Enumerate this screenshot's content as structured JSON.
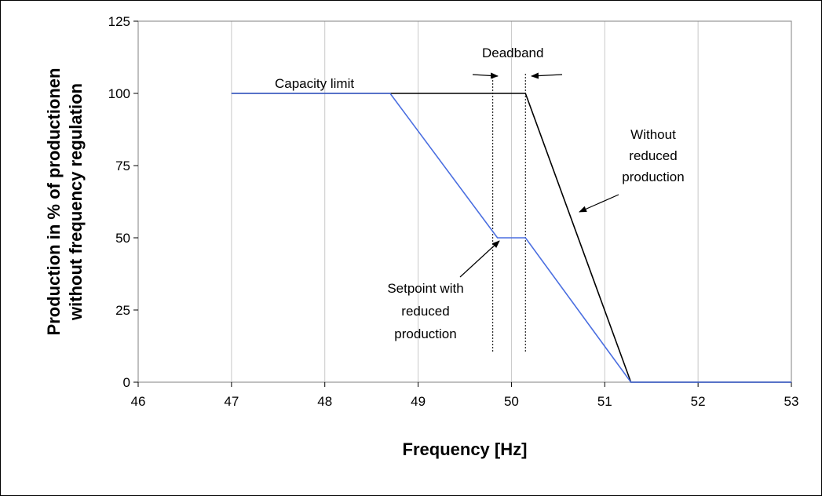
{
  "chart_data": {
    "type": "line",
    "title": "",
    "xlabel": "Frequency [Hz]",
    "ylabel_lines": [
      "Production in % of productionen",
      "without frequency regulation"
    ],
    "xlim": [
      46,
      53
    ],
    "ylim": [
      0,
      125
    ],
    "xticks": [
      "46",
      "47",
      "48",
      "49",
      "50",
      "51",
      "52",
      "53"
    ],
    "yticks": [
      "0",
      "25",
      "50",
      "75",
      "100",
      "125"
    ],
    "grid": "vertical",
    "legend": "none",
    "series": [
      {
        "color": "#000000",
        "x": [
          47,
          50.15,
          51.28,
          53
        ],
        "y": [
          100,
          100,
          0,
          0
        ]
      },
      {
        "color": "#4a6ee0",
        "x": [
          47,
          48.7,
          49.85,
          50.15,
          51.28,
          53
        ],
        "y": [
          100,
          100,
          50,
          50,
          0,
          0
        ]
      }
    ],
    "deadband_x": [
      49.8,
      50.15
    ],
    "annotations": {
      "capacity_limit": "Capacity limit",
      "deadband": "Deadband",
      "without_reduced": [
        "Without",
        "reduced",
        "production"
      ],
      "setpoint": [
        "Setpoint with",
        "reduced",
        "production"
      ]
    }
  }
}
